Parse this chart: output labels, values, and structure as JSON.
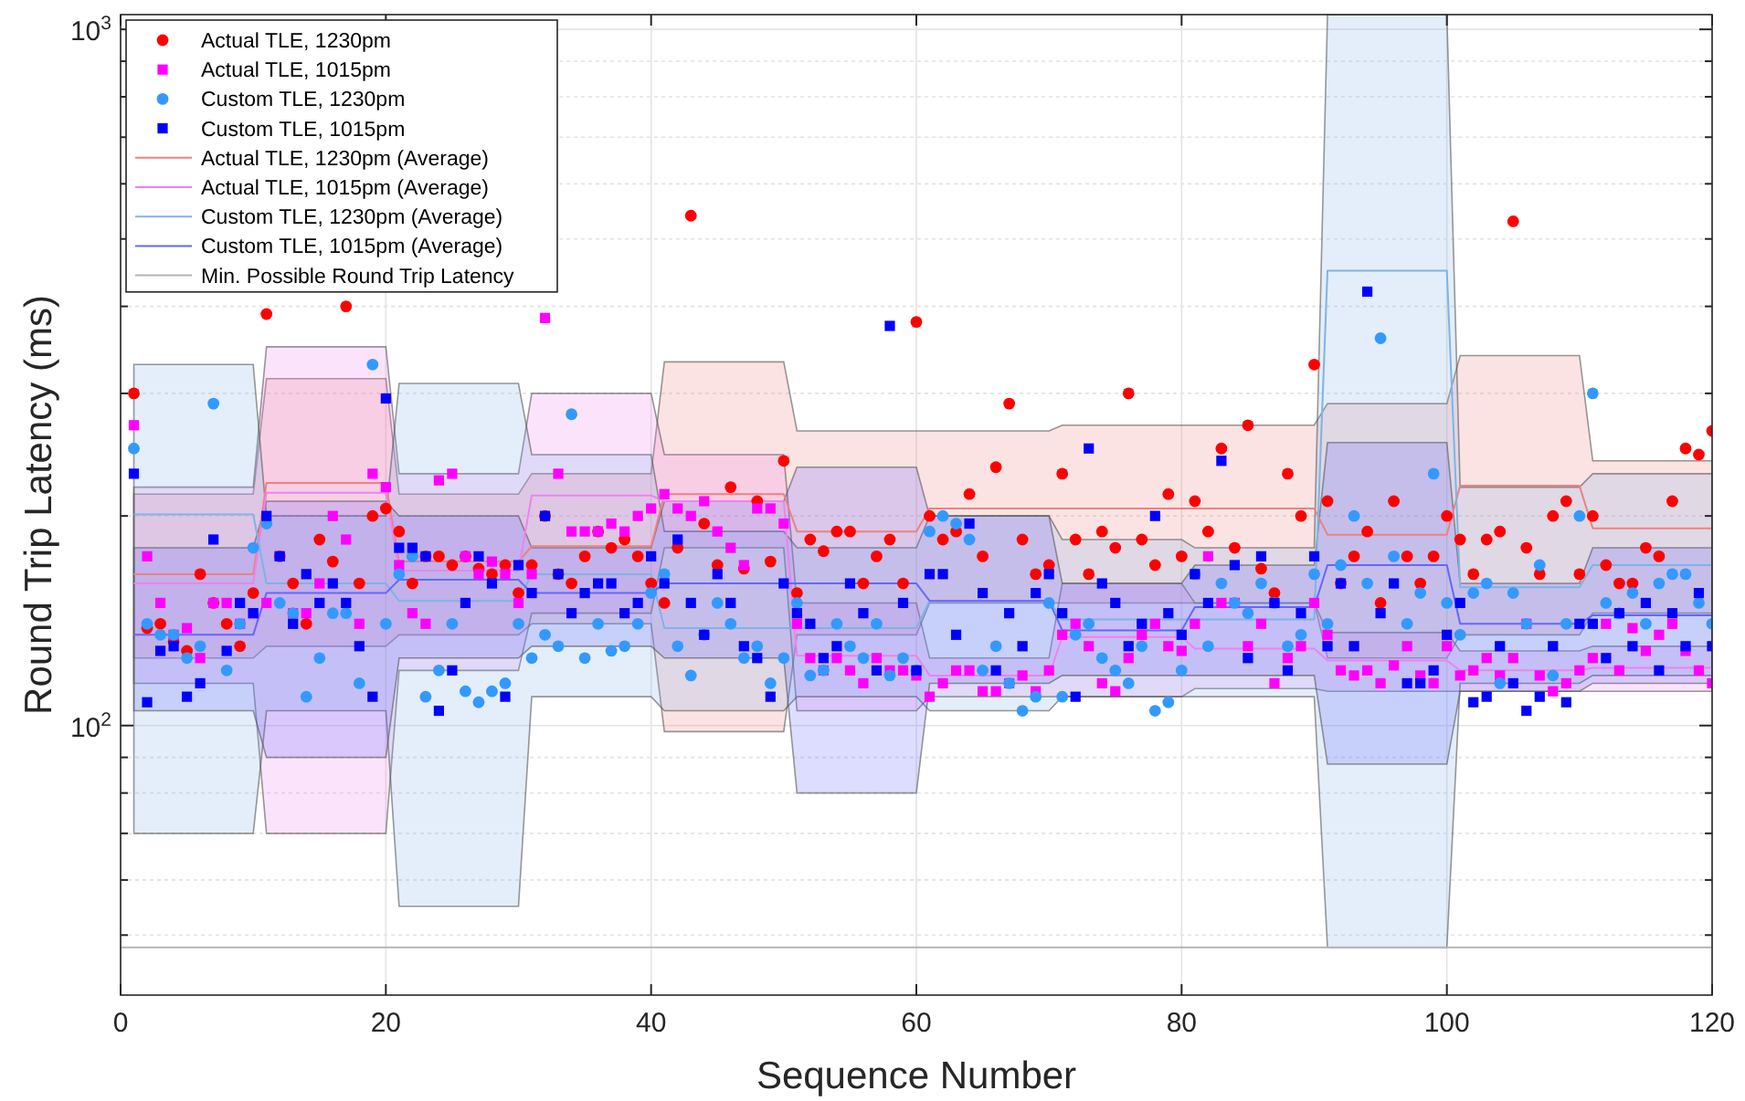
{
  "chart_data": {
    "type": "scatter",
    "xlabel": "Sequence Number",
    "ylabel": "Round Trip Latency (ms)",
    "log": "y",
    "grid": true,
    "legend": "top left",
    "xlim": [
      0,
      120
    ],
    "xticks": [
      0,
      20,
      40,
      60,
      80,
      100,
      120
    ],
    "ylim": [
      41,
      1050
    ],
    "yticks": [
      {
        "value": 50,
        "label": null
      },
      {
        "value": 60,
        "label": null
      },
      {
        "value": 70,
        "label": null
      },
      {
        "value": 80,
        "label": null
      },
      {
        "value": 90,
        "label": null
      },
      {
        "value": 100,
        "label": "10$^{2}$"
      },
      {
        "value": 200,
        "label": null
      },
      {
        "value": 300,
        "label": null
      },
      {
        "value": 400,
        "label": null
      },
      {
        "value": 500,
        "label": null
      },
      {
        "value": 600,
        "label": null
      },
      {
        "value": 700,
        "label": null
      },
      {
        "value": 800,
        "label": null
      },
      {
        "value": 900,
        "label": null
      },
      {
        "value": 1000,
        "label": "10$^{3}$"
      }
    ],
    "ref_lines": [
      {
        "axis": "y",
        "value": 48,
        "label": "Min. Possible Round Trip Latency",
        "color": "#b4b4b4"
      }
    ],
    "series": [
      {
        "name": "Actual TLE, 1230pm",
        "marker": "circle",
        "color": "#ff0000",
        "x": [
          1,
          2,
          3,
          4,
          5,
          6,
          7,
          8,
          9,
          10,
          11,
          12,
          13,
          14,
          15,
          16,
          17,
          18,
          19,
          20,
          21,
          22,
          23,
          24,
          25,
          26,
          27,
          28,
          29,
          30,
          31,
          32,
          33,
          34,
          35,
          36,
          37,
          38,
          39,
          40,
          41,
          42,
          43,
          44,
          45,
          46,
          47,
          48,
          49,
          50,
          51,
          52,
          53,
          54,
          55,
          56,
          57,
          58,
          59,
          60,
          61,
          62,
          63,
          64,
          65,
          66,
          67,
          68,
          69,
          70,
          71,
          72,
          73,
          74,
          75,
          76,
          77,
          78,
          79,
          80,
          81,
          82,
          83,
          84,
          85,
          86,
          87,
          88,
          89,
          90,
          91,
          92,
          93,
          94,
          95,
          96,
          97,
          98,
          99,
          100,
          101,
          102,
          103,
          104,
          105,
          106,
          107,
          108,
          109,
          110,
          111,
          112,
          113,
          114,
          115,
          116,
          117,
          118,
          119,
          120
        ],
        "values": [
          300,
          138,
          140,
          132,
          128,
          165,
          150,
          140,
          130,
          155,
          390,
          175,
          160,
          140,
          185,
          172,
          400,
          160,
          200,
          205,
          190,
          160,
          175,
          175,
          170,
          175,
          168,
          165,
          170,
          155,
          170,
          200,
          165,
          160,
          175,
          190,
          180,
          185,
          175,
          160,
          150,
          180,
          540,
          195,
          170,
          220,
          168,
          210,
          172,
          240,
          155,
          185,
          178,
          190,
          190,
          160,
          175,
          185,
          160,
          380,
          200,
          185,
          190,
          215,
          175,
          235,
          290,
          185,
          165,
          170,
          230,
          185,
          165,
          190,
          180,
          300,
          185,
          170,
          215,
          175,
          210,
          190,
          250,
          180,
          270,
          168,
          155,
          230,
          200,
          330,
          210,
          160,
          175,
          190,
          150,
          210,
          175,
          160,
          175,
          200,
          185,
          165,
          185,
          190,
          530,
          180,
          165,
          200,
          210,
          165,
          200,
          170,
          160,
          160,
          180,
          175,
          210,
          250,
          245,
          265
        ]
      },
      {
        "name": "Actual TLE, 1015pm",
        "marker": "square",
        "color": "#ff00ff",
        "x": [
          1,
          2,
          3,
          4,
          5,
          6,
          7,
          8,
          9,
          10,
          11,
          12,
          13,
          14,
          15,
          16,
          17,
          18,
          19,
          20,
          21,
          22,
          23,
          24,
          25,
          26,
          27,
          28,
          29,
          30,
          31,
          32,
          33,
          34,
          35,
          36,
          37,
          38,
          39,
          40,
          41,
          42,
          43,
          44,
          45,
          46,
          47,
          48,
          49,
          50,
          51,
          52,
          53,
          54,
          55,
          56,
          57,
          58,
          59,
          60,
          61,
          62,
          63,
          64,
          65,
          66,
          67,
          68,
          69,
          70,
          71,
          72,
          73,
          74,
          75,
          76,
          77,
          78,
          79,
          80,
          81,
          82,
          83,
          84,
          85,
          86,
          87,
          88,
          89,
          90,
          91,
          92,
          93,
          94,
          95,
          96,
          97,
          98,
          99,
          100,
          101,
          102,
          103,
          104,
          105,
          106,
          107,
          108,
          109,
          110,
          111,
          112,
          113,
          114,
          115,
          116,
          117,
          118,
          119,
          120
        ],
        "values": [
          270,
          175,
          150,
          135,
          138,
          125,
          150,
          150,
          140,
          145,
          150,
          175,
          145,
          145,
          160,
          200,
          185,
          140,
          230,
          220,
          170,
          145,
          140,
          225,
          230,
          175,
          165,
          172,
          165,
          150,
          165,
          385,
          230,
          190,
          190,
          190,
          195,
          190,
          200,
          205,
          215,
          205,
          200,
          210,
          190,
          180,
          170,
          205,
          205,
          195,
          140,
          125,
          120,
          125,
          120,
          115,
          125,
          120,
          120,
          118,
          110,
          115,
          120,
          120,
          112,
          112,
          115,
          118,
          112,
          120,
          135,
          140,
          130,
          115,
          112,
          125,
          135,
          140,
          130,
          128,
          140,
          175,
          150,
          150,
          130,
          140,
          115,
          125,
          130,
          150,
          135,
          120,
          118,
          120,
          115,
          122,
          130,
          118,
          115,
          130,
          118,
          120,
          125,
          118,
          125,
          140,
          118,
          112,
          115,
          120,
          125,
          140,
          120,
          138,
          128,
          135,
          140,
          128,
          120,
          115
        ]
      },
      {
        "name": "Custom TLE, 1230pm",
        "marker": "circle",
        "color": "#3399ff",
        "x": [
          1,
          2,
          3,
          4,
          5,
          6,
          7,
          8,
          9,
          10,
          11,
          12,
          13,
          14,
          15,
          16,
          17,
          18,
          19,
          20,
          21,
          22,
          23,
          24,
          25,
          26,
          27,
          28,
          29,
          30,
          31,
          32,
          33,
          34,
          35,
          36,
          37,
          38,
          39,
          40,
          41,
          42,
          43,
          44,
          45,
          46,
          47,
          48,
          49,
          50,
          51,
          52,
          53,
          54,
          55,
          56,
          57,
          58,
          59,
          60,
          61,
          62,
          63,
          64,
          65,
          66,
          67,
          68,
          69,
          70,
          71,
          72,
          73,
          74,
          75,
          76,
          77,
          78,
          79,
          80,
          81,
          82,
          83,
          84,
          85,
          86,
          87,
          88,
          89,
          90,
          91,
          92,
          93,
          94,
          95,
          96,
          97,
          98,
          99,
          100,
          101,
          102,
          103,
          104,
          105,
          106,
          107,
          108,
          109,
          110,
          111,
          112,
          113,
          114,
          115,
          116,
          117,
          118,
          119,
          120
        ],
        "values": [
          250,
          140,
          135,
          135,
          125,
          130,
          290,
          120,
          140,
          180,
          195,
          150,
          145,
          110,
          125,
          145,
          145,
          115,
          330,
          140,
          165,
          175,
          110,
          120,
          140,
          112,
          108,
          112,
          115,
          140,
          125,
          135,
          130,
          280,
          125,
          140,
          128,
          130,
          140,
          155,
          165,
          130,
          118,
          135,
          150,
          140,
          125,
          130,
          115,
          125,
          150,
          118,
          120,
          140,
          130,
          125,
          140,
          118,
          125,
          120,
          190,
          200,
          195,
          185,
          120,
          130,
          115,
          105,
          110,
          150,
          110,
          135,
          140,
          125,
          120,
          115,
          130,
          105,
          108,
          120,
          165,
          130,
          160,
          150,
          145,
          160,
          150,
          130,
          135,
          165,
          140,
          170,
          200,
          160,
          360,
          175,
          140,
          155,
          230,
          150,
          135,
          155,
          160,
          115,
          155,
          140,
          170,
          118,
          140,
          200,
          300,
          150,
          145,
          155,
          140,
          160,
          165,
          165,
          150,
          140
        ]
      },
      {
        "name": "Custom TLE, 1015pm",
        "marker": "square",
        "color": "#0000ff",
        "x": [
          1,
          2,
          3,
          4,
          5,
          6,
          7,
          8,
          9,
          10,
          11,
          12,
          13,
          14,
          15,
          16,
          17,
          18,
          19,
          20,
          21,
          22,
          23,
          24,
          25,
          26,
          27,
          28,
          29,
          30,
          31,
          32,
          33,
          34,
          35,
          36,
          37,
          38,
          39,
          40,
          41,
          42,
          43,
          44,
          45,
          46,
          47,
          48,
          49,
          50,
          51,
          52,
          53,
          54,
          55,
          56,
          57,
          58,
          59,
          60,
          61,
          62,
          63,
          64,
          65,
          66,
          67,
          68,
          69,
          70,
          71,
          72,
          73,
          74,
          75,
          76,
          77,
          78,
          79,
          80,
          81,
          82,
          83,
          84,
          85,
          86,
          87,
          88,
          89,
          90,
          91,
          92,
          93,
          94,
          95,
          96,
          97,
          98,
          99,
          100,
          101,
          102,
          103,
          104,
          105,
          106,
          107,
          108,
          109,
          110,
          111,
          112,
          113,
          114,
          115,
          116,
          117,
          118,
          119,
          120
        ],
        "values": [
          230,
          108,
          128,
          130,
          110,
          115,
          185,
          128,
          150,
          145,
          200,
          175,
          140,
          165,
          150,
          160,
          150,
          130,
          110,
          295,
          180,
          180,
          175,
          105,
          120,
          150,
          175,
          160,
          110,
          170,
          155,
          200,
          165,
          145,
          155,
          160,
          160,
          145,
          150,
          175,
          160,
          185,
          150,
          135,
          165,
          150,
          130,
          125,
          110,
          160,
          145,
          140,
          125,
          130,
          160,
          145,
          120,
          375,
          150,
          120,
          165,
          165,
          135,
          195,
          155,
          120,
          145,
          130,
          155,
          165,
          145,
          110,
          250,
          160,
          150,
          130,
          140,
          200,
          145,
          135,
          165,
          150,
          240,
          170,
          125,
          175,
          150,
          120,
          145,
          175,
          130,
          160,
          130,
          420,
          145,
          160,
          115,
          115,
          120,
          135,
          150,
          108,
          110,
          130,
          115,
          105,
          110,
          130,
          108,
          140,
          140,
          125,
          145,
          130,
          150,
          120,
          145,
          130,
          155,
          130
        ]
      },
      {
        "name": "Actual TLE, 1230pm (Average)",
        "type": "line",
        "color": "#f08080",
        "x": [
          1,
          10,
          11,
          20,
          21,
          30,
          31,
          40,
          41,
          50,
          51,
          60,
          61,
          70,
          71,
          80,
          81,
          90,
          91,
          100,
          101,
          110,
          111,
          120
        ],
        "values": [
          165,
          165,
          223,
          223,
          172,
          172,
          181,
          181,
          215,
          215,
          190,
          190,
          205,
          205,
          205,
          205,
          205,
          205,
          188,
          188,
          221,
          221,
          192,
          192
        ],
        "lower": [
          125,
          125,
          130,
          130,
          135,
          135,
          140,
          140,
          98,
          98,
          135,
          135,
          150,
          150,
          150,
          150,
          150,
          150,
          125,
          125,
          135,
          135,
          145,
          145
        ],
        "upper": [
          215,
          215,
          315,
          315,
          215,
          215,
          230,
          230,
          333,
          333,
          265,
          265,
          265,
          265,
          270,
          270,
          270,
          270,
          290,
          290,
          340,
          340,
          240,
          240
        ]
      },
      {
        "name": "Actual TLE, 1015pm (Average)",
        "type": "line",
        "color": "#ee82ee",
        "x": [
          1,
          10,
          11,
          20,
          21,
          30,
          31,
          40,
          41,
          50,
          51,
          60,
          61,
          70,
          71,
          80,
          81,
          90,
          91,
          100,
          101,
          110,
          111,
          120
        ],
        "values": [
          160,
          160,
          216,
          216,
          167,
          167,
          214,
          214,
          210,
          210,
          126,
          126,
          118,
          118,
          134,
          134,
          129,
          129,
          124,
          124,
          120,
          120,
          121,
          121
        ],
        "lower": [
          115,
          115,
          70,
          70,
          120,
          120,
          145,
          145,
          180,
          180,
          105,
          105,
          110,
          110,
          110,
          110,
          113,
          113,
          112,
          112,
          112,
          112,
          112,
          112
        ],
        "upper": [
          220,
          220,
          350,
          350,
          230,
          230,
          300,
          300,
          245,
          245,
          150,
          150,
          125,
          125,
          160,
          160,
          150,
          150,
          136,
          136,
          128,
          128,
          130,
          130
        ]
      },
      {
        "name": "Custom TLE, 1230pm (Average)",
        "type": "line",
        "color": "#7fb3e6",
        "x": [
          1,
          10,
          11,
          20,
          21,
          30,
          31,
          40,
          41,
          50,
          51,
          60,
          61,
          70,
          71,
          80,
          81,
          90,
          91,
          100,
          101,
          110,
          111,
          120
        ],
        "values": [
          201,
          201,
          160,
          160,
          151,
          151,
          165,
          165,
          138,
          138,
          138,
          138,
          151,
          151,
          142,
          142,
          142,
          142,
          450,
          450,
          158,
          158,
          170,
          170
        ],
        "lower": [
          70,
          70,
          105,
          105,
          55,
          55,
          110,
          110,
          105,
          105,
          110,
          110,
          105,
          105,
          110,
          110,
          110,
          110,
          48,
          48,
          115,
          115,
          118,
          118
        ],
        "upper": [
          330,
          330,
          200,
          200,
          310,
          310,
          245,
          245,
          190,
          190,
          180,
          180,
          200,
          200,
          185,
          185,
          180,
          180,
          1050,
          1050,
          220,
          220,
          230,
          230
        ]
      },
      {
        "name": "Custom TLE, 1015pm (Average)",
        "type": "line",
        "color": "#6666ff",
        "x": [
          1,
          10,
          11,
          20,
          21,
          30,
          31,
          40,
          41,
          50,
          51,
          60,
          61,
          70,
          71,
          80,
          81,
          90,
          91,
          100,
          101,
          110,
          111,
          120
        ],
        "values": [
          135,
          135,
          155,
          155,
          162,
          162,
          155,
          155,
          160,
          160,
          160,
          160,
          151,
          151,
          137,
          137,
          148,
          148,
          170,
          170,
          140,
          140,
          144,
          144
        ],
        "lower": [
          105,
          105,
          90,
          90,
          125,
          125,
          130,
          130,
          125,
          125,
          80,
          80,
          115,
          115,
          118,
          118,
          118,
          118,
          88,
          88,
          112,
          112,
          115,
          115
        ],
        "upper": [
          180,
          180,
          210,
          210,
          200,
          200,
          180,
          180,
          210,
          210,
          235,
          235,
          200,
          200,
          160,
          160,
          170,
          170,
          255,
          255,
          160,
          160,
          180,
          180
        ]
      }
    ]
  }
}
